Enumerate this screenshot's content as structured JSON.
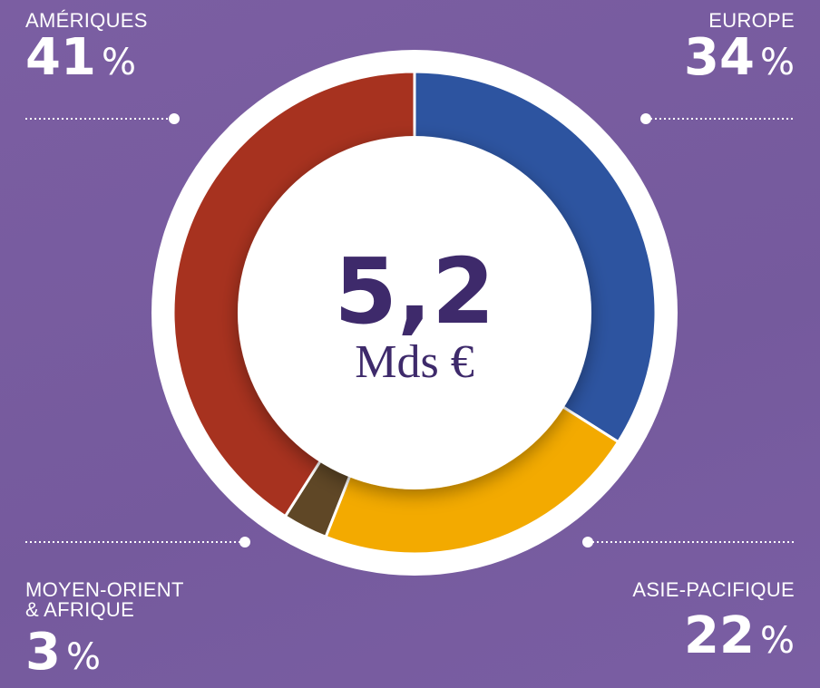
{
  "chart_data": {
    "type": "donut",
    "categories": [
      "EUROPE",
      "ASIE-PACIFIQUE",
      "MOYEN-ORIENT\n& AFRIQUE",
      "AMÉRIQUES"
    ],
    "values": [
      34,
      22,
      3,
      41
    ],
    "colors": [
      "#2d54a0",
      "#f3aa00",
      "#5f4726",
      "#a7321f"
    ],
    "unit": "%",
    "center_text": [
      "5,2",
      "Mds €"
    ]
  }
}
